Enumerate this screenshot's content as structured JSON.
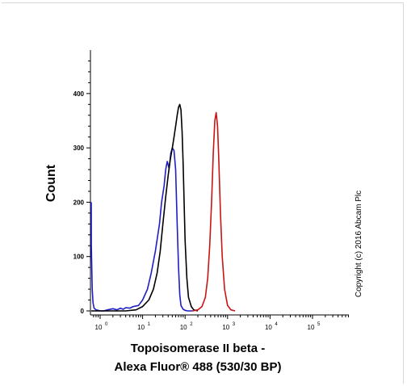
{
  "chart_data": {
    "type": "line",
    "ylabel": "Count",
    "xlabel_line1": "Topoisomerase II beta -",
    "xlabel_line2": "Alexa Fluor® 488 (530/30 BP)",
    "annotation": "Copyright (c) 2016 Abcam Plc",
    "x_scale": "log",
    "xlim": [
      0.6,
      10000000
    ],
    "ylim": [
      0,
      480
    ],
    "y_ticks": [
      0,
      100,
      200,
      300,
      400
    ],
    "x_ticks": [
      {
        "base": "10",
        "exp": "0",
        "value": 1
      },
      {
        "base": "10",
        "exp": "1",
        "value": 10
      },
      {
        "base": "10",
        "exp": "2",
        "value": 100
      },
      {
        "base": "10",
        "exp": "3",
        "value": 1000
      },
      {
        "base": "10",
        "exp": "4",
        "value": 10000
      },
      {
        "base": "10",
        "exp": "5",
        "value": 100000
      }
    ],
    "grid": false,
    "series": [
      {
        "color": "#1e1ec8",
        "x": [
          0.6,
          0.62,
          0.65,
          0.68,
          0.72,
          0.8,
          0.9,
          1.0,
          1.2,
          1.5,
          2.0,
          2.5,
          3.0,
          3.5,
          4.0,
          5.0,
          6.0,
          8.0,
          10,
          13,
          16,
          20,
          25,
          28,
          32,
          35,
          38,
          42,
          46,
          50,
          55,
          60,
          65,
          70,
          75,
          80,
          90,
          100,
          115,
          130,
          150
        ],
        "y": [
          200,
          120,
          40,
          15,
          5,
          2,
          1,
          0,
          0,
          2,
          4,
          2,
          5,
          3,
          6,
          5,
          8,
          10,
          20,
          40,
          70,
          110,
          160,
          200,
          230,
          260,
          275,
          262,
          290,
          300,
          295,
          260,
          160,
          80,
          30,
          10,
          3,
          1,
          0,
          0,
          0
        ]
      },
      {
        "color": "#000000",
        "x": [
          0.6,
          0.8,
          1.0,
          2.0,
          4.0,
          7.0,
          10,
          14,
          18,
          22,
          26,
          30,
          35,
          40,
          45,
          50,
          55,
          60,
          65,
          70,
          75,
          80,
          85,
          90,
          95,
          100,
          110,
          120,
          140,
          160,
          200
        ],
        "y": [
          0,
          0,
          0,
          0,
          0,
          2,
          8,
          20,
          40,
          70,
          110,
          160,
          210,
          250,
          280,
          300,
          320,
          340,
          360,
          375,
          380,
          370,
          330,
          270,
          200,
          130,
          60,
          25,
          8,
          2,
          0
        ]
      },
      {
        "color": "#c81414",
        "x": [
          150,
          200,
          250,
          300,
          340,
          380,
          420,
          460,
          500,
          540,
          580,
          620,
          680,
          750,
          850,
          1000,
          1200,
          1500
        ],
        "y": [
          0,
          2,
          8,
          25,
          60,
          120,
          200,
          290,
          350,
          365,
          340,
          280,
          180,
          100,
          40,
          10,
          2,
          0
        ]
      }
    ]
  }
}
